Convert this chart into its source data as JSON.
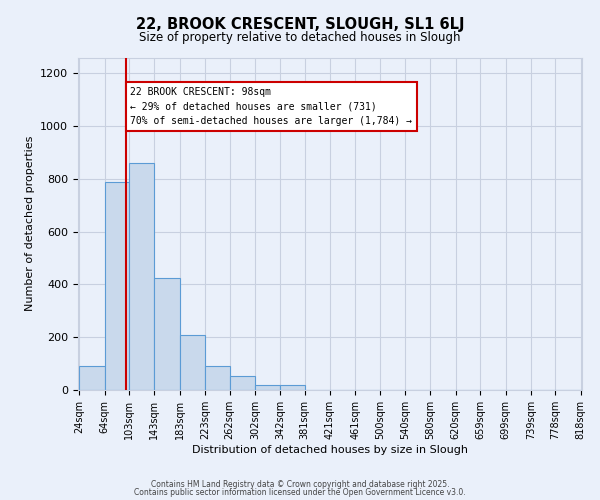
{
  "title1": "22, BROOK CRESCENT, SLOUGH, SL1 6LJ",
  "title2": "Size of property relative to detached houses in Slough",
  "xlabel": "Distribution of detached houses by size in Slough",
  "ylabel": "Number of detached properties",
  "bar_color": "#c9d9ec",
  "bar_edge_color": "#5b9bd5",
  "background_color": "#eaf0fa",
  "grid_color": "#c8d0e0",
  "vline_color": "#cc0000",
  "vline_x": 98,
  "annotation_text_line1": "22 BROOK CRESCENT: 98sqm",
  "annotation_text_line2": "← 29% of detached houses are smaller (731)",
  "annotation_text_line3": "70% of semi-detached houses are larger (1,784) →",
  "bin_edges": [
    24,
    64,
    103,
    143,
    183,
    223,
    262,
    302,
    342,
    381,
    421,
    461,
    500,
    540,
    580,
    620,
    659,
    699,
    739,
    778,
    818
  ],
  "bar_heights": [
    90,
    790,
    860,
    425,
    210,
    90,
    52,
    20,
    18,
    1,
    0,
    0,
    0,
    0,
    0,
    1,
    0,
    1,
    0,
    0
  ],
  "ylim": [
    0,
    1260
  ],
  "yticks": [
    0,
    200,
    400,
    600,
    800,
    1000,
    1200
  ],
  "footer1": "Contains HM Land Registry data © Crown copyright and database right 2025.",
  "footer2": "Contains public sector information licensed under the Open Government Licence v3.0."
}
